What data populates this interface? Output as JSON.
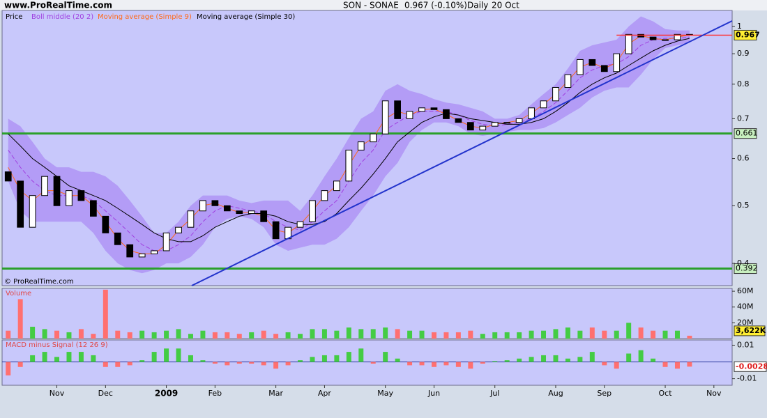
{
  "header": {
    "site": "www.ProRealTime.com",
    "symbol": "SON - SONAE",
    "quote": "0.967 (-0.10%)",
    "period": "Daily",
    "date": "20 Oct",
    "watermark": "© ProRealTime.com"
  },
  "chart_data": [
    {
      "type": "candlestick",
      "name": "Price",
      "log": true,
      "ylim": [
        0.367,
        1.064
      ],
      "yticks": [
        0.4,
        0.5,
        0.6,
        0.7,
        0.8,
        0.9,
        1
      ],
      "up_color": "#ffffff",
      "down_color": "#000000",
      "open": [
        0.57,
        0.55,
        0.46,
        0.52,
        0.56,
        0.5,
        0.53,
        0.51,
        0.48,
        0.45,
        0.43,
        0.41,
        0.415,
        0.42,
        0.45,
        0.46,
        0.49,
        0.51,
        0.5,
        0.49,
        0.485,
        0.49,
        0.47,
        0.44,
        0.46,
        0.47,
        0.51,
        0.53,
        0.55,
        0.62,
        0.64,
        0.66,
        0.75,
        0.7,
        0.72,
        0.73,
        0.725,
        0.7,
        0.69,
        0.67,
        0.68,
        0.69,
        0.69,
        0.7,
        0.73,
        0.75,
        0.79,
        0.83,
        0.88,
        0.86,
        0.84,
        0.9,
        0.97,
        0.96,
        0.95,
        0.95,
        0.97,
        null,
        null,
        null
      ],
      "close": [
        0.55,
        0.46,
        0.52,
        0.56,
        0.5,
        0.53,
        0.51,
        0.48,
        0.45,
        0.43,
        0.41,
        0.415,
        0.42,
        0.45,
        0.46,
        0.49,
        0.51,
        0.5,
        0.49,
        0.485,
        0.49,
        0.47,
        0.44,
        0.46,
        0.47,
        0.51,
        0.53,
        0.55,
        0.62,
        0.64,
        0.66,
        0.75,
        0.7,
        0.72,
        0.73,
        0.725,
        0.7,
        0.69,
        0.67,
        0.68,
        0.69,
        0.69,
        0.7,
        0.73,
        0.75,
        0.79,
        0.83,
        0.88,
        0.86,
        0.84,
        0.9,
        0.97,
        0.96,
        0.95,
        0.95,
        0.97,
        0.967,
        null,
        null,
        null
      ],
      "series": [
        {
          "name": "Boll middle (20 2)",
          "color": "#a040e0",
          "dashed": true,
          "band_color": "#b39cf6",
          "values": [
            0.62,
            0.58,
            0.55,
            0.53,
            0.52,
            0.52,
            0.52,
            0.51,
            0.49,
            0.47,
            0.45,
            0.43,
            0.42,
            0.42,
            0.43,
            0.445,
            0.47,
            0.49,
            0.5,
            0.495,
            0.49,
            0.485,
            0.47,
            0.46,
            0.455,
            0.47,
            0.49,
            0.51,
            0.55,
            0.59,
            0.62,
            0.67,
            0.69,
            0.71,
            0.72,
            0.72,
            0.72,
            0.71,
            0.695,
            0.685,
            0.68,
            0.685,
            0.69,
            0.7,
            0.72,
            0.745,
            0.78,
            0.82,
            0.845,
            0.86,
            0.865,
            0.89,
            0.93,
            0.95,
            0.955,
            0.955,
            0.96,
            null,
            null,
            null
          ],
          "upper": [
            0.7,
            0.68,
            0.64,
            0.6,
            0.58,
            0.58,
            0.57,
            0.57,
            0.56,
            0.54,
            0.51,
            0.48,
            0.45,
            0.45,
            0.47,
            0.5,
            0.52,
            0.52,
            0.52,
            0.51,
            0.505,
            0.51,
            0.51,
            0.51,
            0.49,
            0.52,
            0.56,
            0.6,
            0.65,
            0.7,
            0.72,
            0.78,
            0.8,
            0.78,
            0.77,
            0.755,
            0.745,
            0.74,
            0.73,
            0.72,
            0.7,
            0.7,
            0.71,
            0.74,
            0.77,
            0.8,
            0.85,
            0.91,
            0.93,
            0.94,
            0.95,
            1.0,
            1.04,
            1.02,
            0.99,
            0.985,
            0.985,
            null,
            null,
            null
          ],
          "lower": [
            0.55,
            0.49,
            0.47,
            0.47,
            0.47,
            0.47,
            0.47,
            0.45,
            0.42,
            0.4,
            0.39,
            0.385,
            0.39,
            0.4,
            0.4,
            0.41,
            0.43,
            0.46,
            0.475,
            0.48,
            0.475,
            0.46,
            0.43,
            0.42,
            0.425,
            0.43,
            0.43,
            0.44,
            0.46,
            0.49,
            0.52,
            0.56,
            0.59,
            0.64,
            0.67,
            0.69,
            0.69,
            0.68,
            0.66,
            0.655,
            0.66,
            0.665,
            0.67,
            0.67,
            0.675,
            0.69,
            0.71,
            0.73,
            0.76,
            0.78,
            0.79,
            0.79,
            0.83,
            0.88,
            0.92,
            0.93,
            0.94,
            null,
            null,
            null
          ]
        },
        {
          "name": "Moving average (Simple 9)",
          "color": "#ff6a1a",
          "values": [
            0.58,
            0.53,
            0.51,
            0.53,
            0.53,
            0.52,
            0.52,
            0.5,
            0.47,
            0.44,
            0.42,
            0.415,
            0.415,
            0.43,
            0.455,
            0.475,
            0.5,
            0.505,
            0.495,
            0.487,
            0.487,
            0.48,
            0.455,
            0.45,
            0.465,
            0.49,
            0.52,
            0.54,
            0.585,
            0.63,
            0.65,
            0.7,
            0.72,
            0.71,
            0.725,
            0.727,
            0.712,
            0.695,
            0.68,
            0.675,
            0.685,
            0.69,
            0.695,
            0.715,
            0.74,
            0.77,
            0.81,
            0.855,
            0.87,
            0.85,
            0.87,
            0.935,
            0.965,
            0.955,
            0.95,
            0.96,
            0.968,
            null,
            null,
            null
          ]
        },
        {
          "name": "Moving average (Simple 30)",
          "color": "#000000",
          "values": [
            0.66,
            0.63,
            0.6,
            0.58,
            0.56,
            0.54,
            0.53,
            0.52,
            0.51,
            0.495,
            0.48,
            0.465,
            0.45,
            0.44,
            0.435,
            0.435,
            0.445,
            0.46,
            0.47,
            0.48,
            0.485,
            0.485,
            0.48,
            0.47,
            0.465,
            0.465,
            0.47,
            0.485,
            0.51,
            0.535,
            0.565,
            0.6,
            0.64,
            0.665,
            0.69,
            0.705,
            0.715,
            0.71,
            0.7,
            0.695,
            0.69,
            0.685,
            0.685,
            0.69,
            0.7,
            0.72,
            0.745,
            0.775,
            0.8,
            0.82,
            0.835,
            0.86,
            0.885,
            0.91,
            0.93,
            0.945,
            0.955,
            null,
            null,
            null
          ]
        }
      ],
      "levels": [
        0.661,
        0.392
      ],
      "level_color": "#2aa02a",
      "last": 0.967,
      "last_color": "#ff3030"
    },
    {
      "type": "bar",
      "title": "Volume",
      "up_color": "#44cc44",
      "down_color": "#ff7070",
      "ylim": [
        0,
        63600000
      ],
      "yticks": [
        {
          "value": 20000000,
          "label": "20M"
        },
        {
          "value": 40000000,
          "label": "40M"
        },
        {
          "value": 60000000,
          "label": "60M"
        }
      ],
      "values": [
        10000000,
        50000000,
        15000000,
        12000000,
        10000000,
        8000000,
        12000000,
        6000000,
        62000000,
        10000000,
        8000000,
        10000000,
        8000000,
        10000000,
        12000000,
        6000000,
        10000000,
        8000000,
        8000000,
        6000000,
        8000000,
        10000000,
        6000000,
        8000000,
        6000000,
        12000000,
        12000000,
        10000000,
        14000000,
        12000000,
        12000000,
        14000000,
        12000000,
        10000000,
        10000000,
        8000000,
        8000000,
        8000000,
        10000000,
        6000000,
        8000000,
        8000000,
        8000000,
        10000000,
        10000000,
        12000000,
        14000000,
        10000000,
        14000000,
        10000000,
        10000000,
        20000000,
        14000000,
        10000000,
        10000000,
        10000000,
        3622000,
        null,
        null,
        null
      ],
      "last": {
        "value": 3622000,
        "label": "3,622K"
      }
    },
    {
      "type": "bar",
      "title": "MACD minus Signal (12 26 9)",
      "up_color": "#44cc44",
      "down_color": "#ff7070",
      "ylim": [
        -0.0139,
        0.0131
      ],
      "yticks": [
        0.01,
        -0.01
      ],
      "values": [
        -0.008,
        -0.003,
        0.004,
        0.006,
        0.003,
        0.006,
        0.006,
        0.004,
        -0.003,
        -0.003,
        -0.002,
        0.001,
        0.006,
        0.008,
        0.008,
        0.004,
        0.001,
        -0.001,
        -0.002,
        -0.001,
        -0.001,
        -0.002,
        -0.004,
        -0.002,
        0.001,
        0.003,
        0.004,
        0.004,
        0.006,
        0.008,
        -0.001,
        0.006,
        0.002,
        -0.002,
        -0.002,
        -0.003,
        -0.002,
        -0.003,
        -0.004,
        -0.001,
        0.0005,
        0.001,
        0.002,
        0.003,
        0.004,
        0.004,
        0.002,
        0.003,
        0.006,
        -0.002,
        -0.004,
        0.005,
        0.007,
        0.002,
        -0.003,
        -0.004,
        -0.0028,
        null,
        null,
        null
      ],
      "last": -0.0028,
      "categories": [
        null,
        null,
        null,
        null,
        "Nov",
        null,
        null,
        null,
        "Dec",
        null,
        null,
        null,
        null,
        "2009",
        null,
        null,
        null,
        "Feb",
        null,
        null,
        null,
        null,
        "Mar",
        null,
        null,
        null,
        "Apr",
        null,
        null,
        null,
        null,
        "May",
        null,
        null,
        null,
        "Jun",
        null,
        null,
        null,
        null,
        "Jul",
        null,
        null,
        null,
        null,
        "Aug",
        null,
        null,
        null,
        "Sep",
        null,
        null,
        null,
        null,
        "Oct",
        null,
        null,
        null,
        "Nov",
        null
      ]
    }
  ]
}
